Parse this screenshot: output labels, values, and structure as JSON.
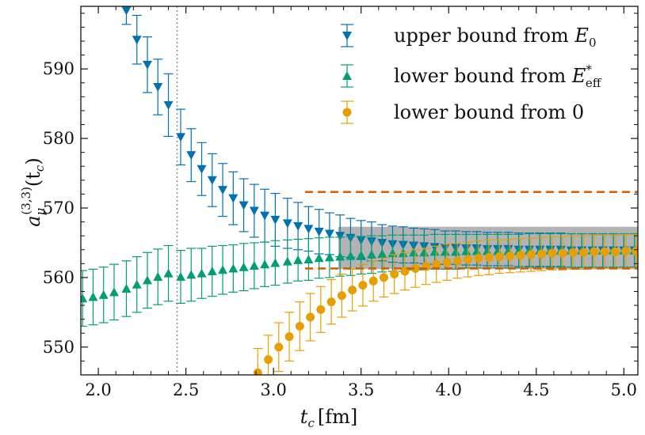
{
  "chart_data": {
    "type": "scatter",
    "title": "",
    "xlabel": {
      "main": "t",
      "sub": "c",
      "unit": "[fm]"
    },
    "ylabel": {
      "main": "a",
      "sub": "μ",
      "sup": "(3,3)",
      "arg": "(t",
      "argsub": "c",
      "argclose": ")"
    },
    "xlim": [
      1.9,
      5.08
    ],
    "ylim": [
      546,
      599
    ],
    "xticks": [
      2.0,
      2.5,
      3.0,
      3.5,
      4.0,
      4.5,
      5.0
    ],
    "xtick_labels": [
      "2.0",
      "2.5",
      "3.0",
      "3.5",
      "4.0",
      "4.5",
      "5.0"
    ],
    "yticks": [
      550,
      560,
      570,
      580,
      590
    ],
    "ytick_labels": [
      "550",
      "560",
      "570",
      "580",
      "590"
    ],
    "vline_x": 2.45,
    "band": {
      "x0": 3.37,
      "x1": 5.08,
      "y0": 561.2,
      "y1": 567.3,
      "color": "#808080"
    },
    "dashed_lines": [
      {
        "x0": 3.18,
        "x1": 5.08,
        "y": 572.3,
        "color": "#d55e00"
      },
      {
        "x0": 3.18,
        "x1": 5.08,
        "y": 561.3,
        "color": "#d55e00"
      }
    ],
    "legend": {
      "position": "top-right",
      "entries": [
        {
          "label": "upper bound from ",
          "math": "E",
          "sub": "0",
          "sup": "",
          "color": "#0072b2",
          "marker": "triangle-down"
        },
        {
          "label": "lower bound from ",
          "math": "E",
          "sub": "eff",
          "sup": "*",
          "color": "#009e73",
          "marker": "triangle-up"
        },
        {
          "label": "lower bound from 0",
          "math": "",
          "sub": "",
          "sup": "",
          "color": "#e69f00",
          "marker": "circle"
        }
      ]
    },
    "series": [
      {
        "name": "upper bound from E0",
        "color": "#0072b2",
        "marker": "triangle-down",
        "points": [
          [
            2.16,
            598.4,
            2.0
          ],
          [
            2.22,
            594.2,
            3.5
          ],
          [
            2.28,
            590.6,
            4.0
          ],
          [
            2.34,
            587.4,
            4.0
          ],
          [
            2.4,
            584.8,
            4.5
          ],
          [
            2.47,
            580.2,
            4.0
          ],
          [
            2.53,
            577.6,
            3.8
          ],
          [
            2.59,
            575.6,
            3.8
          ],
          [
            2.65,
            574.0,
            3.8
          ],
          [
            2.71,
            572.6,
            3.8
          ],
          [
            2.77,
            571.4,
            3.8
          ],
          [
            2.83,
            570.4,
            3.8
          ],
          [
            2.89,
            569.6,
            3.8
          ],
          [
            2.95,
            568.9,
            3.8
          ],
          [
            3.01,
            568.3,
            3.8
          ],
          [
            3.08,
            567.8,
            3.6
          ],
          [
            3.14,
            567.4,
            3.4
          ],
          [
            3.2,
            567.0,
            3.2
          ],
          [
            3.26,
            566.6,
            3.2
          ],
          [
            3.32,
            566.3,
            3.0
          ],
          [
            3.38,
            566.0,
            3.0
          ],
          [
            3.44,
            565.7,
            2.8
          ],
          [
            3.5,
            565.4,
            2.8
          ],
          [
            3.56,
            565.2,
            2.8
          ],
          [
            3.62,
            565.0,
            2.6
          ],
          [
            3.68,
            564.8,
            2.6
          ],
          [
            3.74,
            564.7,
            2.6
          ],
          [
            3.8,
            564.6,
            2.5
          ],
          [
            3.86,
            564.5,
            2.5
          ],
          [
            3.92,
            564.4,
            2.5
          ],
          [
            3.98,
            564.3,
            2.4
          ],
          [
            4.04,
            564.3,
            2.4
          ],
          [
            4.1,
            564.2,
            2.4
          ],
          [
            4.16,
            564.2,
            2.4
          ],
          [
            4.22,
            564.1,
            2.4
          ],
          [
            4.28,
            564.1,
            2.4
          ],
          [
            4.34,
            564.1,
            2.4
          ],
          [
            4.4,
            564.0,
            2.4
          ],
          [
            4.46,
            564.0,
            2.4
          ],
          [
            4.52,
            564.0,
            2.4
          ],
          [
            4.58,
            564.0,
            2.4
          ],
          [
            4.64,
            564.0,
            2.4
          ],
          [
            4.7,
            563.9,
            2.4
          ],
          [
            4.76,
            563.9,
            2.4
          ],
          [
            4.82,
            563.9,
            2.4
          ],
          [
            4.88,
            563.9,
            2.4
          ],
          [
            4.94,
            563.9,
            2.4
          ],
          [
            5.0,
            563.9,
            2.4
          ],
          [
            5.06,
            563.9,
            2.4
          ]
        ]
      },
      {
        "name": "lower bound from Eeff*",
        "color": "#009e73",
        "marker": "triangle-up",
        "points": [
          [
            1.91,
            557.0,
            4.0
          ],
          [
            1.97,
            557.2,
            4.0
          ],
          [
            2.03,
            557.5,
            4.0
          ],
          [
            2.09,
            557.9,
            4.0
          ],
          [
            2.16,
            558.4,
            4.0
          ],
          [
            2.22,
            559.0,
            4.0
          ],
          [
            2.28,
            559.6,
            4.0
          ],
          [
            2.34,
            560.1,
            4.0
          ],
          [
            2.4,
            560.6,
            4.0
          ],
          [
            2.47,
            560.1,
            3.8
          ],
          [
            2.53,
            560.4,
            3.8
          ],
          [
            2.59,
            560.6,
            3.6
          ],
          [
            2.65,
            560.9,
            3.6
          ],
          [
            2.71,
            561.1,
            3.5
          ],
          [
            2.77,
            561.3,
            3.4
          ],
          [
            2.83,
            561.5,
            3.4
          ],
          [
            2.89,
            561.7,
            3.3
          ],
          [
            2.95,
            561.9,
            3.2
          ],
          [
            3.01,
            562.1,
            3.2
          ],
          [
            3.08,
            562.3,
            3.1
          ],
          [
            3.14,
            562.5,
            3.0
          ],
          [
            3.2,
            562.6,
            3.0
          ],
          [
            3.26,
            562.8,
            2.9
          ],
          [
            3.32,
            562.9,
            2.9
          ],
          [
            3.38,
            563.0,
            2.8
          ],
          [
            3.44,
            563.1,
            2.8
          ],
          [
            3.5,
            563.2,
            2.7
          ],
          [
            3.56,
            563.3,
            2.7
          ],
          [
            3.62,
            563.4,
            2.6
          ],
          [
            3.68,
            563.5,
            2.6
          ],
          [
            3.74,
            563.5,
            2.6
          ],
          [
            3.8,
            563.6,
            2.5
          ],
          [
            3.86,
            563.6,
            2.5
          ],
          [
            3.92,
            563.7,
            2.5
          ],
          [
            3.98,
            563.7,
            2.5
          ],
          [
            4.04,
            563.7,
            2.5
          ],
          [
            4.1,
            563.8,
            2.4
          ],
          [
            4.16,
            563.8,
            2.4
          ],
          [
            4.22,
            563.8,
            2.4
          ],
          [
            4.28,
            563.8,
            2.4
          ],
          [
            4.34,
            563.8,
            2.4
          ],
          [
            4.4,
            563.8,
            2.4
          ],
          [
            4.46,
            563.9,
            2.4
          ],
          [
            4.52,
            563.9,
            2.4
          ],
          [
            4.58,
            563.9,
            2.4
          ],
          [
            4.64,
            563.9,
            2.4
          ],
          [
            4.7,
            563.9,
            2.4
          ],
          [
            4.76,
            563.9,
            2.4
          ],
          [
            4.82,
            563.9,
            2.4
          ],
          [
            4.88,
            563.9,
            2.4
          ],
          [
            4.94,
            563.9,
            2.4
          ],
          [
            5.0,
            563.9,
            2.4
          ],
          [
            5.06,
            563.9,
            2.4
          ]
        ]
      },
      {
        "name": "lower bound from 0",
        "color": "#e69f00",
        "marker": "circle",
        "points": [
          [
            2.91,
            546.3,
            3.5
          ],
          [
            2.97,
            548.2,
            3.5
          ],
          [
            3.03,
            550.0,
            3.5
          ],
          [
            3.09,
            551.5,
            3.5
          ],
          [
            3.15,
            553.0,
            3.5
          ],
          [
            3.21,
            554.3,
            3.4
          ],
          [
            3.27,
            555.4,
            3.3
          ],
          [
            3.33,
            556.5,
            3.2
          ],
          [
            3.39,
            557.4,
            3.1
          ],
          [
            3.45,
            558.2,
            3.0
          ],
          [
            3.51,
            558.9,
            3.0
          ],
          [
            3.57,
            559.5,
            2.9
          ],
          [
            3.63,
            560.0,
            2.8
          ],
          [
            3.69,
            560.5,
            2.8
          ],
          [
            3.75,
            560.9,
            2.7
          ],
          [
            3.81,
            561.3,
            2.7
          ],
          [
            3.87,
            561.6,
            2.6
          ],
          [
            3.93,
            561.9,
            2.6
          ],
          [
            3.99,
            562.2,
            2.6
          ],
          [
            4.05,
            562.4,
            2.5
          ],
          [
            4.11,
            562.6,
            2.5
          ],
          [
            4.17,
            562.8,
            2.5
          ],
          [
            4.23,
            562.9,
            2.5
          ],
          [
            4.29,
            563.0,
            2.4
          ],
          [
            4.35,
            563.1,
            2.4
          ],
          [
            4.41,
            563.2,
            2.4
          ],
          [
            4.47,
            563.3,
            2.4
          ],
          [
            4.53,
            563.4,
            2.4
          ],
          [
            4.59,
            563.5,
            2.4
          ],
          [
            4.65,
            563.5,
            2.4
          ],
          [
            4.71,
            563.6,
            2.4
          ],
          [
            4.77,
            563.6,
            2.4
          ],
          [
            4.83,
            563.7,
            2.4
          ],
          [
            4.89,
            563.7,
            2.4
          ],
          [
            4.95,
            563.7,
            2.4
          ],
          [
            5.01,
            563.8,
            2.4
          ],
          [
            5.07,
            563.8,
            2.4
          ]
        ]
      }
    ]
  }
}
